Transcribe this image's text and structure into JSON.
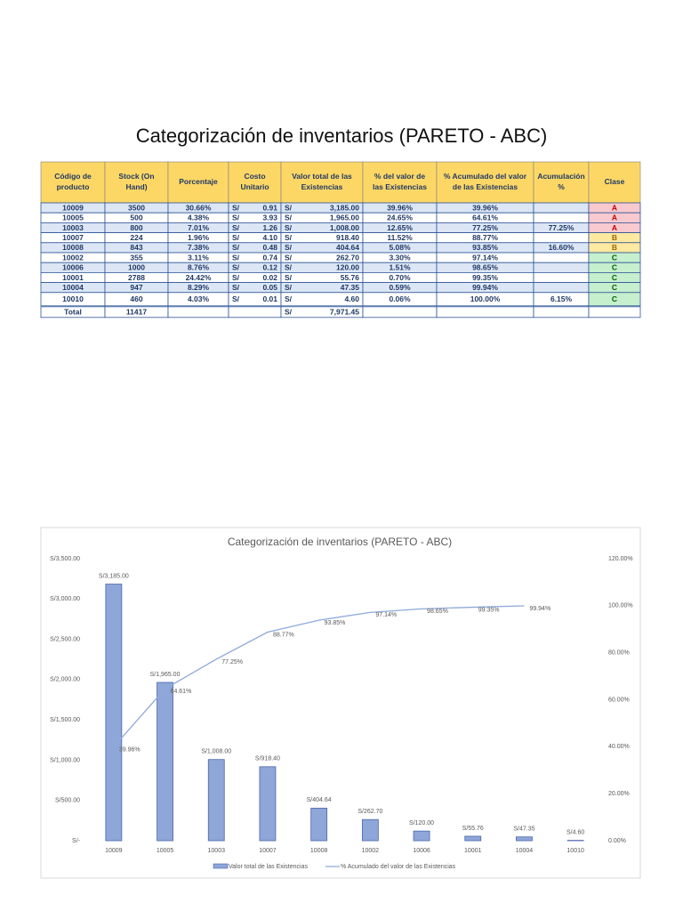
{
  "title": "Categorización de inventarios (PARETO - ABC)",
  "table": {
    "headers": [
      "Código de producto",
      "Stock (On Hand)",
      "Porcentaje",
      "Costo Unitario",
      "Valor total de las Existencias",
      "% del valor de las Existencias",
      "% Acumulado del valor de las Existencias",
      "Acumulación %",
      "Clase"
    ],
    "rows": [
      {
        "code": "10009",
        "stock": "3500",
        "pct": "30.66%",
        "cost_currency": "S/",
        "cost": "0.91",
        "value_currency": "S/",
        "value": "3,185.00",
        "share": "39.96%",
        "cumulative": "39.96%",
        "clase": "A"
      },
      {
        "code": "10005",
        "stock": "500",
        "pct": "4.38%",
        "cost_currency": "S/",
        "cost": "3.93",
        "value_currency": "S/",
        "value": "1,965.00",
        "share": "24.65%",
        "cumulative": "64.61%",
        "clase": "A"
      },
      {
        "code": "10003",
        "stock": "800",
        "pct": "7.01%",
        "cost_currency": "S/",
        "cost": "1.26",
        "value_currency": "S/",
        "value": "1,008.00",
        "share": "12.65%",
        "cumulative": "77.25%",
        "acumulacion": "77.25%",
        "clase": "A"
      },
      {
        "code": "10007",
        "stock": "224",
        "pct": "1.96%",
        "cost_currency": "S/",
        "cost": "4.10",
        "value_currency": "S/",
        "value": "918.40",
        "share": "11.52%",
        "cumulative": "88.77%",
        "clase": "B"
      },
      {
        "code": "10008",
        "stock": "843",
        "pct": "7.38%",
        "cost_currency": "S/",
        "cost": "0.48",
        "value_currency": "S/",
        "value": "404.64",
        "share": "5.08%",
        "cumulative": "93.85%",
        "acumulacion": "16.60%",
        "clase": "B"
      },
      {
        "code": "10002",
        "stock": "355",
        "pct": "3.11%",
        "cost_currency": "S/",
        "cost": "0.74",
        "value_currency": "S/",
        "value": "262.70",
        "share": "3.30%",
        "cumulative": "97.14%",
        "clase": "C"
      },
      {
        "code": "10006",
        "stock": "1000",
        "pct": "8.76%",
        "cost_currency": "S/",
        "cost": "0.12",
        "value_currency": "S/",
        "value": "120.00",
        "share": "1.51%",
        "cumulative": "98.65%",
        "clase": "C"
      },
      {
        "code": "10001",
        "stock": "2788",
        "pct": "24.42%",
        "cost_currency": "S/",
        "cost": "0.02",
        "value_currency": "S/",
        "value": "55.76",
        "share": "0.70%",
        "cumulative": "99.35%",
        "clase": "C"
      },
      {
        "code": "10004",
        "stock": "947",
        "pct": "8.29%",
        "cost_currency": "S/",
        "cost": "0.05",
        "value_currency": "S/",
        "value": "47.35",
        "share": "0.59%",
        "cumulative": "99.94%",
        "clase": "C"
      },
      {
        "code": "10010",
        "stock": "460",
        "pct": "4.03%",
        "cost_currency": "S/",
        "cost": "0.01",
        "value_currency": "S/",
        "value": "4.60",
        "share": "0.06%",
        "cumulative": "100.00%",
        "acumulacion": "6.15%",
        "clase": "C"
      }
    ],
    "total": {
      "code": "Total",
      "stock": "11417",
      "value_currency": "S/",
      "value": "7,971.45"
    }
  },
  "chart_data": {
    "type": "bar",
    "title": "Categorización de inventarios (PARETO - ABC)",
    "categories": [
      "10009",
      "10005",
      "10003",
      "10007",
      "10008",
      "10002",
      "10006",
      "10001",
      "10004",
      "10010"
    ],
    "series": [
      {
        "name": "Valor total de las Existencias",
        "type": "bar",
        "color": "#8ea6d8",
        "values": [
          3185,
          1965,
          1008,
          918.4,
          404.64,
          262.7,
          120,
          55.76,
          47.35,
          4.6
        ],
        "value_labels": [
          "S/3,185.00",
          "S/1,965.00",
          "S/1,008.00",
          "S/918.40",
          "S/404.64",
          "S/262.70",
          "S/120.00",
          "S/55.76",
          "S/47.35",
          "S/4.60"
        ]
      },
      {
        "name": "% Acumulado del valor de las Existencias",
        "type": "line",
        "axis": "y2",
        "color": "#8eaadb",
        "values": [
          39.96,
          64.61,
          77.25,
          88.77,
          93.85,
          97.14,
          98.65,
          99.35,
          99.94,
          null
        ],
        "value_labels": [
          "39.96%",
          "64.61%",
          "77.25%",
          "88.77%",
          "93.85%",
          "97.14%",
          "98.65%",
          "99.35%",
          "99.94%",
          null
        ]
      }
    ],
    "ylim": [
      0,
      3500
    ],
    "yticks": [
      {
        "value": 0,
        "label": "S/-"
      },
      {
        "value": 500,
        "label": "S/500.00"
      },
      {
        "value": 1000,
        "label": "S/1,000.00"
      },
      {
        "value": 1500,
        "label": "S/1,500.00"
      },
      {
        "value": 2000,
        "label": "S/2,000.00"
      },
      {
        "value": 2500,
        "label": "S/2,500.00"
      },
      {
        "value": 3000,
        "label": "S/3,000.00"
      },
      {
        "value": 3500,
        "label": "S/3,500.00"
      }
    ],
    "y2lim": [
      0,
      120
    ],
    "y2ticks": [
      {
        "value": 0,
        "label": "0.00%"
      },
      {
        "value": 20,
        "label": "20.00%"
      },
      {
        "value": 40,
        "label": "40.00%"
      },
      {
        "value": 60,
        "label": "60.00%"
      },
      {
        "value": 80,
        "label": "80.00%"
      },
      {
        "value": 100,
        "label": "100.00%"
      },
      {
        "value": 120,
        "label": "120.00%"
      }
    ],
    "legend": "bottom",
    "grid": false
  }
}
